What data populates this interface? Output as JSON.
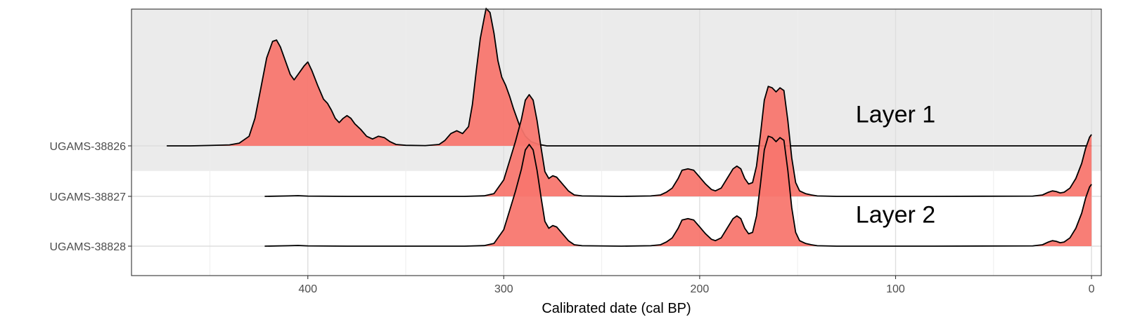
{
  "chart_data": {
    "type": "ridgeline-density",
    "title": "",
    "xlabel": "Calibrated date (cal BP)",
    "ylabel": "",
    "x_reversed": true,
    "xlim": [
      490,
      -5
    ],
    "x_ticks": [
      400,
      300,
      200,
      100,
      0
    ],
    "x_tick_labels": [
      "400",
      "300",
      "200",
      "100",
      "0"
    ],
    "x_minor_ticks": [
      450,
      350,
      250,
      150,
      50
    ],
    "grid": true,
    "legend": "none",
    "colors": {
      "fill": "#f8766d",
      "outline": "#000000",
      "band": "#ebebeb",
      "grid_major": "#dedede",
      "grid_minor": "#eeeeee"
    },
    "categories": [
      "UGAMS-38826",
      "UGAMS-38827",
      "UGAMS-38828"
    ],
    "series": [
      {
        "name": "UGAMS-38826",
        "points": [
          [
            472,
            0
          ],
          [
            460,
            0
          ],
          [
            450,
            0.003
          ],
          [
            440,
            0.007
          ],
          [
            435,
            0.02
          ],
          [
            430,
            0.07
          ],
          [
            427,
            0.2
          ],
          [
            424,
            0.42
          ],
          [
            421,
            0.64
          ],
          [
            418,
            0.76
          ],
          [
            416,
            0.77
          ],
          [
            414,
            0.72
          ],
          [
            411,
            0.6
          ],
          [
            409,
            0.52
          ],
          [
            407,
            0.48
          ],
          [
            405,
            0.52
          ],
          [
            402,
            0.58
          ],
          [
            400,
            0.61
          ],
          [
            398,
            0.55
          ],
          [
            395,
            0.44
          ],
          [
            392,
            0.34
          ],
          [
            390,
            0.31
          ],
          [
            388,
            0.26
          ],
          [
            386,
            0.2
          ],
          [
            384,
            0.17
          ],
          [
            382,
            0.2
          ],
          [
            380,
            0.22
          ],
          [
            378,
            0.2
          ],
          [
            376,
            0.16
          ],
          [
            373,
            0.12
          ],
          [
            370,
            0.07
          ],
          [
            367,
            0.05
          ],
          [
            364,
            0.07
          ],
          [
            361,
            0.06
          ],
          [
            358,
            0.03
          ],
          [
            355,
            0.01
          ],
          [
            350,
            0.004
          ],
          [
            340,
            0.002
          ],
          [
            333,
            0.01
          ],
          [
            330,
            0.04
          ],
          [
            327,
            0.09
          ],
          [
            324,
            0.11
          ],
          [
            321,
            0.09
          ],
          [
            318,
            0.14
          ],
          [
            316,
            0.3
          ],
          [
            314,
            0.55
          ],
          [
            312,
            0.78
          ],
          [
            310,
            0.93
          ],
          [
            309,
            1.0
          ],
          [
            307,
            0.97
          ],
          [
            305,
            0.82
          ],
          [
            303,
            0.62
          ],
          [
            301,
            0.5
          ],
          [
            299,
            0.44
          ],
          [
            297,
            0.36
          ],
          [
            295,
            0.27
          ],
          [
            292,
            0.15
          ],
          [
            289,
            0.07
          ],
          [
            286,
            0.03
          ],
          [
            282,
            0.01
          ],
          [
            278,
            0
          ],
          [
            0,
            0
          ]
        ]
      },
      {
        "name": "UGAMS-38827",
        "points": [
          [
            422,
            0
          ],
          [
            410,
            0.003
          ],
          [
            405,
            0.005
          ],
          [
            400,
            0.002
          ],
          [
            380,
            0
          ],
          [
            320,
            0
          ],
          [
            310,
            0.004
          ],
          [
            305,
            0.02
          ],
          [
            300,
            0.12
          ],
          [
            297,
            0.26
          ],
          [
            294,
            0.4
          ],
          [
            291,
            0.56
          ],
          [
            289,
            0.7
          ],
          [
            287,
            0.74
          ],
          [
            285,
            0.7
          ],
          [
            283,
            0.55
          ],
          [
            281,
            0.36
          ],
          [
            279,
            0.18
          ],
          [
            277,
            0.13
          ],
          [
            275,
            0.15
          ],
          [
            273,
            0.14
          ],
          [
            270,
            0.09
          ],
          [
            267,
            0.04
          ],
          [
            264,
            0.01
          ],
          [
            260,
            0.003
          ],
          [
            240,
            0
          ],
          [
            225,
            0.003
          ],
          [
            220,
            0.01
          ],
          [
            217,
            0.03
          ],
          [
            214,
            0.06
          ],
          [
            211,
            0.13
          ],
          [
            209,
            0.19
          ],
          [
            206,
            0.2
          ],
          [
            203,
            0.19
          ],
          [
            200,
            0.14
          ],
          [
            197,
            0.09
          ],
          [
            194,
            0.05
          ],
          [
            192,
            0.04
          ],
          [
            189,
            0.06
          ],
          [
            186,
            0.13
          ],
          [
            183,
            0.2
          ],
          [
            181,
            0.22
          ],
          [
            179,
            0.2
          ],
          [
            177,
            0.13
          ],
          [
            175,
            0.09
          ],
          [
            173,
            0.1
          ],
          [
            171,
            0.22
          ],
          [
            169,
            0.45
          ],
          [
            167,
            0.7
          ],
          [
            165,
            0.8
          ],
          [
            163,
            0.79
          ],
          [
            161,
            0.76
          ],
          [
            159,
            0.79
          ],
          [
            157,
            0.77
          ],
          [
            155,
            0.55
          ],
          [
            153,
            0.28
          ],
          [
            151,
            0.1
          ],
          [
            149,
            0.04
          ],
          [
            146,
            0.02
          ],
          [
            143,
            0.01
          ],
          [
            140,
            0.003
          ],
          [
            130,
            0
          ],
          [
            80,
            0
          ],
          [
            30,
            0.002
          ],
          [
            25,
            0.01
          ],
          [
            22,
            0.03
          ],
          [
            20,
            0.04
          ],
          [
            18,
            0.035
          ],
          [
            16,
            0.025
          ],
          [
            14,
            0.03
          ],
          [
            11,
            0.06
          ],
          [
            8,
            0.13
          ],
          [
            5,
            0.24
          ],
          [
            3,
            0.35
          ],
          [
            1,
            0.43
          ],
          [
            0,
            0.45
          ]
        ]
      },
      {
        "name": "UGAMS-38828",
        "points": [
          [
            422,
            0
          ],
          [
            410,
            0.003
          ],
          [
            405,
            0.005
          ],
          [
            400,
            0.002
          ],
          [
            380,
            0
          ],
          [
            320,
            0
          ],
          [
            310,
            0.004
          ],
          [
            305,
            0.02
          ],
          [
            300,
            0.12
          ],
          [
            297,
            0.26
          ],
          [
            294,
            0.4
          ],
          [
            291,
            0.56
          ],
          [
            289,
            0.7
          ],
          [
            287,
            0.74
          ],
          [
            285,
            0.7
          ],
          [
            283,
            0.55
          ],
          [
            281,
            0.36
          ],
          [
            279,
            0.18
          ],
          [
            277,
            0.13
          ],
          [
            275,
            0.15
          ],
          [
            273,
            0.14
          ],
          [
            270,
            0.09
          ],
          [
            267,
            0.04
          ],
          [
            264,
            0.01
          ],
          [
            260,
            0.003
          ],
          [
            240,
            0
          ],
          [
            225,
            0.003
          ],
          [
            220,
            0.01
          ],
          [
            217,
            0.03
          ],
          [
            214,
            0.06
          ],
          [
            211,
            0.13
          ],
          [
            209,
            0.19
          ],
          [
            206,
            0.2
          ],
          [
            203,
            0.19
          ],
          [
            200,
            0.14
          ],
          [
            197,
            0.09
          ],
          [
            194,
            0.05
          ],
          [
            192,
            0.04
          ],
          [
            189,
            0.06
          ],
          [
            186,
            0.13
          ],
          [
            183,
            0.2
          ],
          [
            181,
            0.22
          ],
          [
            179,
            0.2
          ],
          [
            177,
            0.13
          ],
          [
            175,
            0.09
          ],
          [
            173,
            0.1
          ],
          [
            171,
            0.22
          ],
          [
            169,
            0.45
          ],
          [
            167,
            0.7
          ],
          [
            165,
            0.8
          ],
          [
            163,
            0.79
          ],
          [
            161,
            0.76
          ],
          [
            159,
            0.79
          ],
          [
            157,
            0.77
          ],
          [
            155,
            0.55
          ],
          [
            153,
            0.28
          ],
          [
            151,
            0.1
          ],
          [
            149,
            0.04
          ],
          [
            146,
            0.02
          ],
          [
            143,
            0.01
          ],
          [
            140,
            0.003
          ],
          [
            130,
            0
          ],
          [
            80,
            0
          ],
          [
            30,
            0.002
          ],
          [
            25,
            0.01
          ],
          [
            22,
            0.03
          ],
          [
            20,
            0.04
          ],
          [
            18,
            0.035
          ],
          [
            16,
            0.025
          ],
          [
            14,
            0.03
          ],
          [
            11,
            0.06
          ],
          [
            8,
            0.13
          ],
          [
            5,
            0.24
          ],
          [
            3,
            0.35
          ],
          [
            1,
            0.43
          ],
          [
            0,
            0.45
          ]
        ]
      }
    ],
    "annotations": [
      {
        "text": "Layer 1",
        "x": 100,
        "y_category": "UGAMS-38826",
        "y_offset": 0.45
      },
      {
        "text": "Layer 2",
        "x": 100,
        "y_category": "UGAMS-38828",
        "y_offset": 0.45
      }
    ],
    "bands": [
      {
        "label": "Layer 1",
        "from_category": "UGAMS-38826",
        "extends": "above_and_half_below"
      }
    ]
  }
}
